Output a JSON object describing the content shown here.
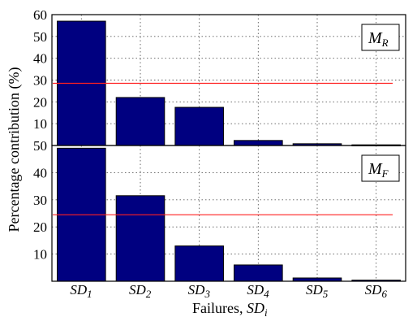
{
  "chart_data": [
    {
      "type": "bar",
      "panel": "top",
      "categories": [
        "SD1",
        "SD2",
        "SD3",
        "SD4",
        "SD5",
        "SD6"
      ],
      "values": [
        57,
        22,
        17.5,
        2.3,
        0.8,
        0.3
      ],
      "reference_line": 28.5,
      "ylim": [
        0,
        60
      ],
      "yticks": [
        10,
        20,
        30,
        40,
        50,
        60
      ],
      "legend": {
        "main": "M",
        "sub": "R",
        "placement": "top-right"
      },
      "grid": true
    },
    {
      "type": "bar",
      "panel": "bottom",
      "categories": [
        "SD1",
        "SD2",
        "SD3",
        "SD4",
        "SD5",
        "SD6"
      ],
      "values": [
        49,
        31.5,
        13,
        6,
        1.2,
        0.4
      ],
      "reference_line": 24.5,
      "ylim": [
        0,
        50
      ],
      "yticks": [
        10,
        20,
        30,
        40,
        50
      ],
      "legend": {
        "main": "M",
        "sub": "F",
        "placement": "top-right"
      },
      "grid": true
    }
  ],
  "category_labels": [
    {
      "main": "SD",
      "sub": "1"
    },
    {
      "main": "SD",
      "sub": "2"
    },
    {
      "main": "SD",
      "sub": "3"
    },
    {
      "main": "SD",
      "sub": "4"
    },
    {
      "main": "SD",
      "sub": "5"
    },
    {
      "main": "SD",
      "sub": "6"
    }
  ],
  "ylabel": "Percentage contribution (%)",
  "xlabel": {
    "prefix": "Failures, ",
    "main": "SD",
    "sub": "i"
  },
  "colors": {
    "bar": "#000080",
    "reference_line": "#ff2020",
    "grid": "#5a5a5a"
  }
}
